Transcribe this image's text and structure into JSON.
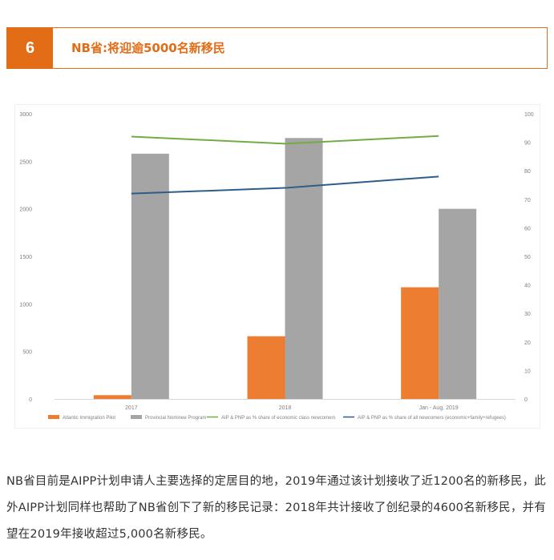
{
  "header": {
    "number": "6",
    "title": "NB省:将迎逾5000名新移民"
  },
  "colors": {
    "accent": "#e36c16",
    "aip_bar": "#ed7d31",
    "pnp_bar": "#a5a5a5",
    "economic_line": "#70ad47",
    "all_line": "#2e5d8a"
  },
  "chart_data": {
    "type": "bar",
    "categories": [
      "2017",
      "2018",
      "Jan - Aug. 2019"
    ],
    "series": [
      {
        "name": "Atlantic Immigration Pilot",
        "type": "bar",
        "axis": "left",
        "values": [
          40,
          660,
          1175
        ]
      },
      {
        "name": "Provincial Nominee Program",
        "type": "bar",
        "axis": "left",
        "values": [
          2580,
          2745,
          2000
        ]
      },
      {
        "name": "AIP & PNP as % share of economic class newcomers",
        "type": "line",
        "axis": "right",
        "values": [
          92,
          89.5,
          92.2
        ]
      },
      {
        "name": "AIP & PNP as % share of all newcomers (economic+family+refugees)",
        "type": "line",
        "axis": "right",
        "values": [
          72,
          74,
          78
        ]
      }
    ],
    "y_left": {
      "min": 0,
      "max": 3000,
      "ticks": [
        "0",
        "500",
        "1000",
        "1500",
        "2000",
        "2500",
        "3000"
      ]
    },
    "y_right": {
      "min": 0,
      "max": 100,
      "ticks": [
        "0",
        "10",
        "20",
        "30",
        "40",
        "50",
        "60",
        "70",
        "80",
        "90",
        "100"
      ]
    },
    "grid": false,
    "legend_position": "bottom"
  },
  "body": {
    "paragraph": "NB省目前是AIPP计划申请人主要选择的定居目的地，2019年通过该计划接收了近1200名的新移民，此外AIPP计划同样也帮助了NB省创下了新的移民记录：2018年共计接收了创纪录的4600名新移民，并有望在2019年接收超过5,000名新移民。"
  }
}
